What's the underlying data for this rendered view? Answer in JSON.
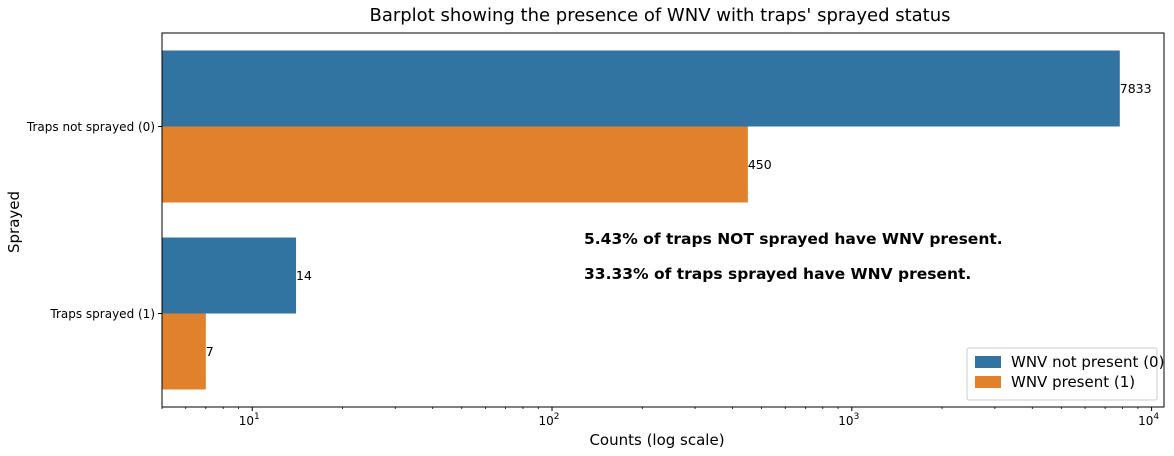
{
  "chart_data": {
    "type": "bar",
    "orientation": "horizontal",
    "title": "Barplot showing the presence of WNV with traps' sprayed status",
    "xlabel": "Counts (log scale)",
    "ylabel": "Sprayed",
    "xscale": "log",
    "xlim": [
      5,
      11000
    ],
    "categories": [
      "Traps not sprayed (0)",
      "Traps sprayed (1)"
    ],
    "series": [
      {
        "name": "WNV not present (0)",
        "color": "#3274a1",
        "values": [
          7833,
          14
        ]
      },
      {
        "name": "WNV present (1)",
        "color": "#e1812c",
        "values": [
          450,
          7
        ]
      }
    ],
    "x_ticks": [
      {
        "value": 10,
        "base": "10",
        "exp": "1"
      },
      {
        "value": 100,
        "base": "10",
        "exp": "2"
      },
      {
        "value": 1000,
        "base": "10",
        "exp": "3"
      },
      {
        "value": 10000,
        "base": "10",
        "exp": "4"
      }
    ],
    "annotations": [
      "5.43% of traps NOT sprayed have WNV present.",
      "33.33% of traps sprayed have WNV present."
    ],
    "legend_position": "lower-right",
    "grid": false
  }
}
